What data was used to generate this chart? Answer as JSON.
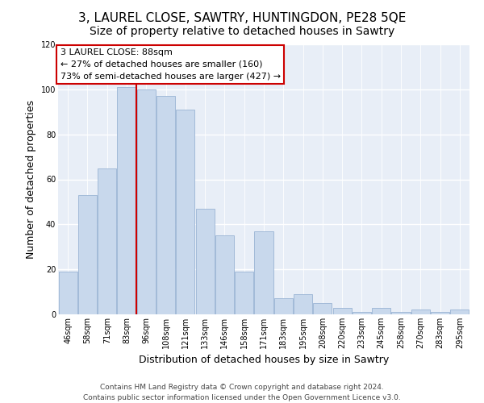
{
  "title": "3, LAUREL CLOSE, SAWTRY, HUNTINGDON, PE28 5QE",
  "subtitle": "Size of property relative to detached houses in Sawtry",
  "xlabel": "Distribution of detached houses by size in Sawtry",
  "ylabel": "Number of detached properties",
  "bar_labels": [
    "46sqm",
    "58sqm",
    "71sqm",
    "83sqm",
    "96sqm",
    "108sqm",
    "121sqm",
    "133sqm",
    "146sqm",
    "158sqm",
    "171sqm",
    "183sqm",
    "195sqm",
    "208sqm",
    "220sqm",
    "233sqm",
    "245sqm",
    "258sqm",
    "270sqm",
    "283sqm",
    "295sqm"
  ],
  "bar_values": [
    19,
    53,
    65,
    101,
    100,
    97,
    91,
    47,
    35,
    19,
    37,
    7,
    9,
    5,
    3,
    1,
    3,
    1,
    2,
    1,
    2
  ],
  "bar_color": "#c8d8ec",
  "bar_edge_color": "#9ab4d4",
  "annotation_title": "3 LAUREL CLOSE: 88sqm",
  "annotation_line1": "← 27% of detached houses are smaller (160)",
  "annotation_line2": "73% of semi-detached houses are larger (427) →",
  "annotation_box_color": "#ffffff",
  "annotation_box_edge": "#cc0000",
  "property_vline_color": "#cc0000",
  "vline_x_index": 3,
  "ylim": [
    0,
    120
  ],
  "yticks": [
    0,
    20,
    40,
    60,
    80,
    100,
    120
  ],
  "footer_line1": "Contains HM Land Registry data © Crown copyright and database right 2024.",
  "footer_line2": "Contains public sector information licensed under the Open Government Licence v3.0.",
  "fig_background": "#ffffff",
  "plot_background": "#e8eef7",
  "grid_color": "#ffffff",
  "title_fontsize": 11,
  "axis_label_fontsize": 9,
  "tick_fontsize": 7,
  "annotation_fontsize": 8,
  "footer_fontsize": 6.5
}
